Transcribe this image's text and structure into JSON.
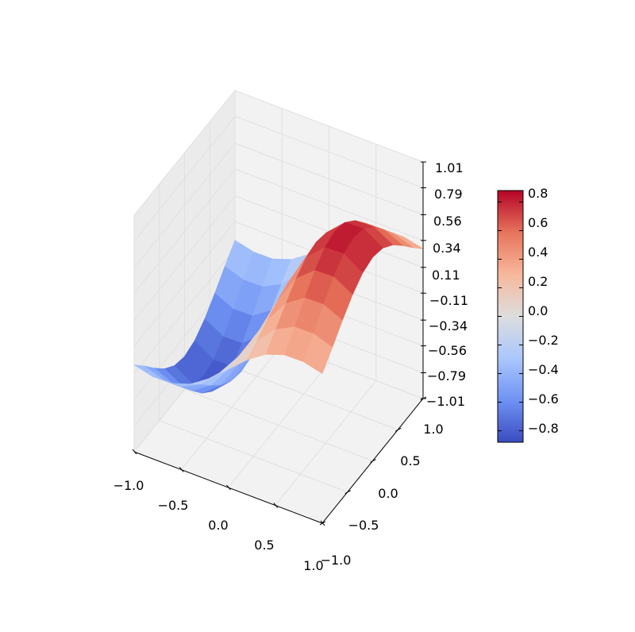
{
  "chart_data": {
    "type": "surface3d",
    "title": "",
    "xlabel": "",
    "ylabel": "",
    "zlabel": "",
    "x_ticks": [
      "−1.0",
      "−0.5",
      "0.0",
      "0.5",
      "1.0"
    ],
    "y_ticks": [
      "−1.0",
      "−0.5",
      "0.0",
      "0.5",
      "1.0"
    ],
    "z_ticks": [
      "1.01",
      "0.79",
      "0.56",
      "0.34",
      "0.11",
      "−0.11",
      "−0.34",
      "−0.56",
      "−0.79",
      "−1.01"
    ],
    "xlim": [
      -1.0,
      1.0
    ],
    "ylim": [
      -1.0,
      1.0
    ],
    "zlim": [
      -1.01,
      1.01
    ],
    "grid": true,
    "colormap": "coolwarm",
    "surface": {
      "function": "z = x * exp(-x^2 - y^2) scaled to peak ~0.85",
      "x": [
        -1.0,
        -0.8,
        -0.6,
        -0.4,
        -0.2,
        0.0,
        0.2,
        0.4,
        0.6,
        0.8,
        1.0
      ],
      "y": [
        -1.0,
        -0.8,
        -0.6,
        -0.4,
        -0.2,
        0.0,
        0.2,
        0.4,
        0.6,
        0.8,
        1.0
      ],
      "z_max": 0.85,
      "z_min": -0.85
    },
    "colorbar": {
      "ticks": [
        "0.8",
        "0.6",
        "0.4",
        "0.2",
        "0.0",
        "−0.2",
        "−0.4",
        "−0.6",
        "−0.8"
      ],
      "range": [
        -0.88,
        0.88
      ],
      "colors": [
        "#3b4cc0",
        "#6f92f3",
        "#aac7fd",
        "#dddddd",
        "#f7b89c",
        "#e7745b",
        "#b40426"
      ]
    }
  }
}
